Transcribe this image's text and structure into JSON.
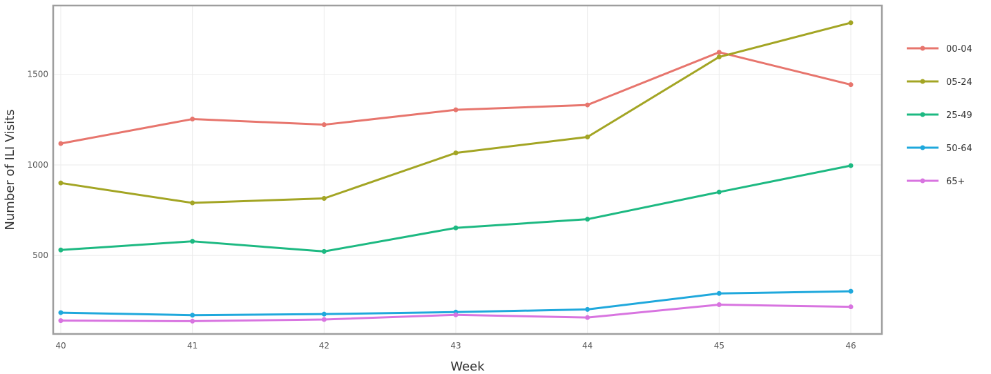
{
  "chart_data": {
    "type": "line",
    "title": "",
    "xlabel": "Week",
    "ylabel": "Number of ILI Visits",
    "x": [
      40,
      41,
      42,
      43,
      44,
      45,
      46
    ],
    "xlim": [
      40,
      46
    ],
    "ylim": [
      70,
      1880
    ],
    "y_ticks": [
      500,
      1000,
      1500
    ],
    "grid": true,
    "legend_position": "right",
    "series": [
      {
        "name": "00-04",
        "color": "#e7756d",
        "values": [
          1118,
          1253,
          1222,
          1304,
          1331,
          1622,
          1443
        ]
      },
      {
        "name": "05-24",
        "color": "#a3a524",
        "values": [
          900,
          790,
          815,
          1066,
          1154,
          1596,
          1785
        ]
      },
      {
        "name": "25-49",
        "color": "#1db982",
        "values": [
          530,
          578,
          522,
          652,
          700,
          850,
          996
        ]
      },
      {
        "name": "50-64",
        "color": "#1fa8dc",
        "values": [
          184,
          170,
          176,
          187,
          202,
          290,
          302
        ]
      },
      {
        "name": "65+",
        "color": "#d874e0",
        "values": [
          140,
          137,
          146,
          172,
          157,
          228,
          216
        ]
      }
    ]
  }
}
